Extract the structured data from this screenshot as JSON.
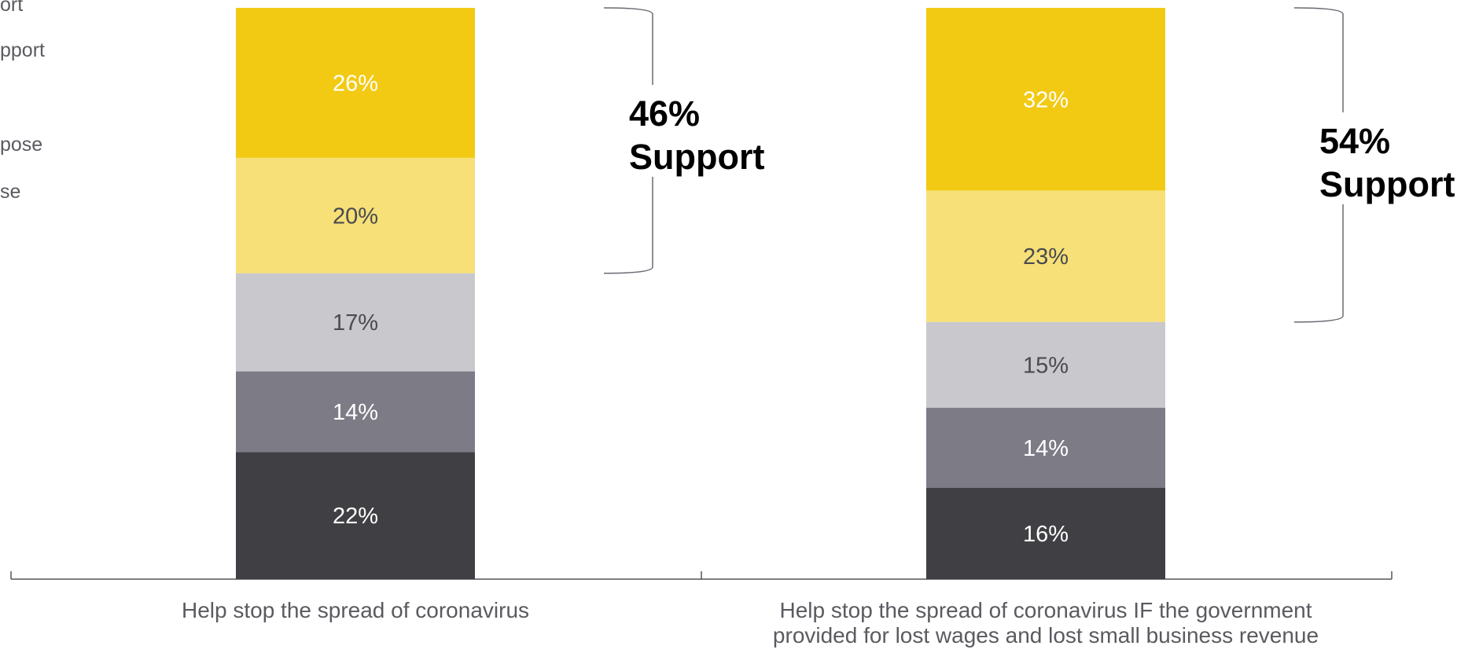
{
  "chart_data": {
    "type": "bar",
    "stacked": true,
    "orientation": "vertical",
    "categories": [
      "Help stop the spread of coronavirus",
      "Help stop the spread of coronavirus IF the government provided for lost wages and lost small business revenue"
    ],
    "category_label_lines": [
      [
        "Help stop the spread of coronavirus"
      ],
      [
        "Help stop the spread of coronavirus IF the government",
        "provided for lost wages and lost small business revenue"
      ]
    ],
    "series": [
      {
        "name": "ort",
        "values": [
          26,
          32
        ],
        "color": "#F2CA14",
        "label_color": "#ffffff"
      },
      {
        "name": "pport",
        "values": [
          20,
          23
        ],
        "color": "#F6E077",
        "label_color": "#4a4a50"
      },
      {
        "name": "",
        "values": [
          17,
          15
        ],
        "color": "#C9C8CD",
        "label_color": "#4a4a50"
      },
      {
        "name": "pose",
        "values": [
          14,
          14
        ],
        "color": "#7C7B86",
        "label_color": "#ffffff"
      },
      {
        "name": "se",
        "values": [
          22,
          16
        ],
        "color": "#404044",
        "label_color": "#ffffff"
      }
    ],
    "data_labels": [
      [
        "26%",
        "20%",
        "17%",
        "14%",
        "22%"
      ],
      [
        "32%",
        "23%",
        "15%",
        "14%",
        "16%"
      ]
    ],
    "annotations": [
      {
        "value": "46%",
        "text": "Support"
      },
      {
        "value": "54%",
        "text": "Support"
      }
    ],
    "legend_position": "top-left",
    "grid": false
  }
}
